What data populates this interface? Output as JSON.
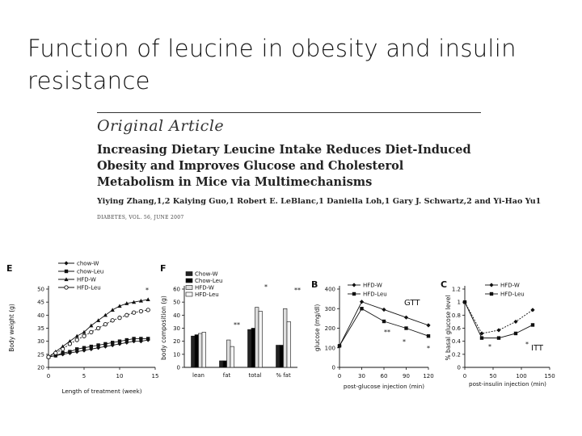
{
  "slide": {
    "title": "Function of leucine in obesity and insulin resistance"
  },
  "article": {
    "section": "Original Article",
    "title": "Increasing Dietary Leucine Intake Reduces Diet-Induced Obesity and Improves Glucose and Cholesterol Metabolism in Mice via Multimechanisms",
    "authors": "Yiying Zhang,1,2 Kaiying Guo,1 Robert E. LeBlanc,1 Daniella Loh,1 Gary J. Schwartz,2 and Yi-Hao Yu1",
    "citation": "DIABETES, VOL. 56, JUNE 2007"
  },
  "chart_data": [
    {
      "panel": "E",
      "type": "line",
      "xlabel": "Length of treatment (week)",
      "ylabel": "Body weight (g)",
      "xlim": [
        0,
        15
      ],
      "ylim": [
        20,
        50
      ],
      "xticks": [
        0,
        5,
        10,
        15
      ],
      "yticks": [
        20,
        25,
        30,
        35,
        40,
        45,
        50
      ],
      "legend": "top-left",
      "annotation": "*",
      "x": [
        0,
        1,
        2,
        3,
        4,
        5,
        6,
        7,
        8,
        9,
        10,
        11,
        12,
        13,
        14
      ],
      "series": [
        {
          "name": "chow-W",
          "marker": "filled-diamond",
          "values": [
            24,
            24.5,
            25,
            25.5,
            26,
            26.5,
            27,
            27.5,
            28,
            28.5,
            29,
            29.5,
            30,
            30,
            30.5
          ]
        },
        {
          "name": "chow-Leu",
          "marker": "filled-square",
          "values": [
            24,
            24.5,
            25.5,
            26,
            27,
            27.5,
            28,
            28.5,
            29,
            29.5,
            30,
            30.5,
            31,
            31,
            31
          ]
        },
        {
          "name": "HFD-W",
          "marker": "triangle",
          "values": [
            24,
            26,
            28,
            30,
            32,
            33.5,
            36,
            38,
            40,
            42,
            43.5,
            44.5,
            45,
            45.5,
            46
          ]
        },
        {
          "name": "HFD-Leu",
          "marker": "open-circle",
          "values": [
            24,
            25.5,
            27,
            29,
            30.5,
            32,
            33.5,
            35,
            36.5,
            38,
            39,
            40,
            41,
            41.5,
            42
          ]
        }
      ]
    },
    {
      "panel": "F",
      "type": "bar",
      "ylabel": "body composition (g)",
      "ylim": [
        0,
        60
      ],
      "yticks": [
        0,
        10,
        20,
        30,
        40,
        50,
        60
      ],
      "categories": [
        "lean",
        "fat",
        "total",
        "% fat"
      ],
      "legend": "top-left",
      "annotations": [
        "**",
        "*",
        "**"
      ],
      "series": [
        {
          "name": "Chow-W",
          "color": "#222222",
          "values": [
            24,
            5,
            29,
            17
          ]
        },
        {
          "name": "Chow-Leu",
          "color": "#000000",
          "values": [
            25,
            5,
            30,
            17
          ]
        },
        {
          "name": "HFD-W",
          "color": "#dddddd",
          "values": [
            26,
            21,
            46,
            45
          ]
        },
        {
          "name": "HFD-Leu",
          "color": "#f4f4f4",
          "values": [
            27,
            16,
            43,
            35
          ]
        }
      ]
    },
    {
      "panel": "B",
      "type": "line",
      "title": "GTT",
      "xlabel": "post-glucose injection (min)",
      "ylabel": "glucose (mg/dl)",
      "xlim": [
        0,
        120
      ],
      "ylim": [
        0,
        400
      ],
      "xticks": [
        0,
        30,
        60,
        90,
        120
      ],
      "yticks": [
        0,
        100,
        200,
        300,
        400
      ],
      "legend": "top-left",
      "annotations": [
        "**",
        "*",
        "*"
      ],
      "x": [
        0,
        30,
        60,
        90,
        120
      ],
      "series": [
        {
          "name": "HFD-W",
          "marker": "filled-diamond",
          "values": [
            110,
            335,
            295,
            255,
            215
          ]
        },
        {
          "name": "HFD-Leu",
          "marker": "filled-square",
          "values": [
            110,
            300,
            235,
            200,
            160
          ]
        }
      ]
    },
    {
      "panel": "C",
      "type": "line",
      "title": "ITT",
      "xlabel": "post-insulin injection (min)",
      "ylabel": "% basal glucose level",
      "xlim": [
        0,
        150
      ],
      "ylim": [
        0,
        1.2
      ],
      "xticks": [
        0,
        50,
        100,
        150
      ],
      "yticks": [
        0,
        0.2,
        0.4,
        0.6,
        0.8,
        1.0,
        1.2
      ],
      "legend": "top-right",
      "annotations": [
        "*",
        "*"
      ],
      "x": [
        0,
        30,
        60,
        90,
        120
      ],
      "series": [
        {
          "name": "HFD-W",
          "marker": "filled-diamond",
          "values": [
            1.0,
            0.52,
            0.57,
            0.7,
            0.88
          ]
        },
        {
          "name": "HFD-Leu",
          "marker": "filled-square",
          "values": [
            1.0,
            0.45,
            0.45,
            0.52,
            0.65
          ]
        }
      ]
    }
  ]
}
